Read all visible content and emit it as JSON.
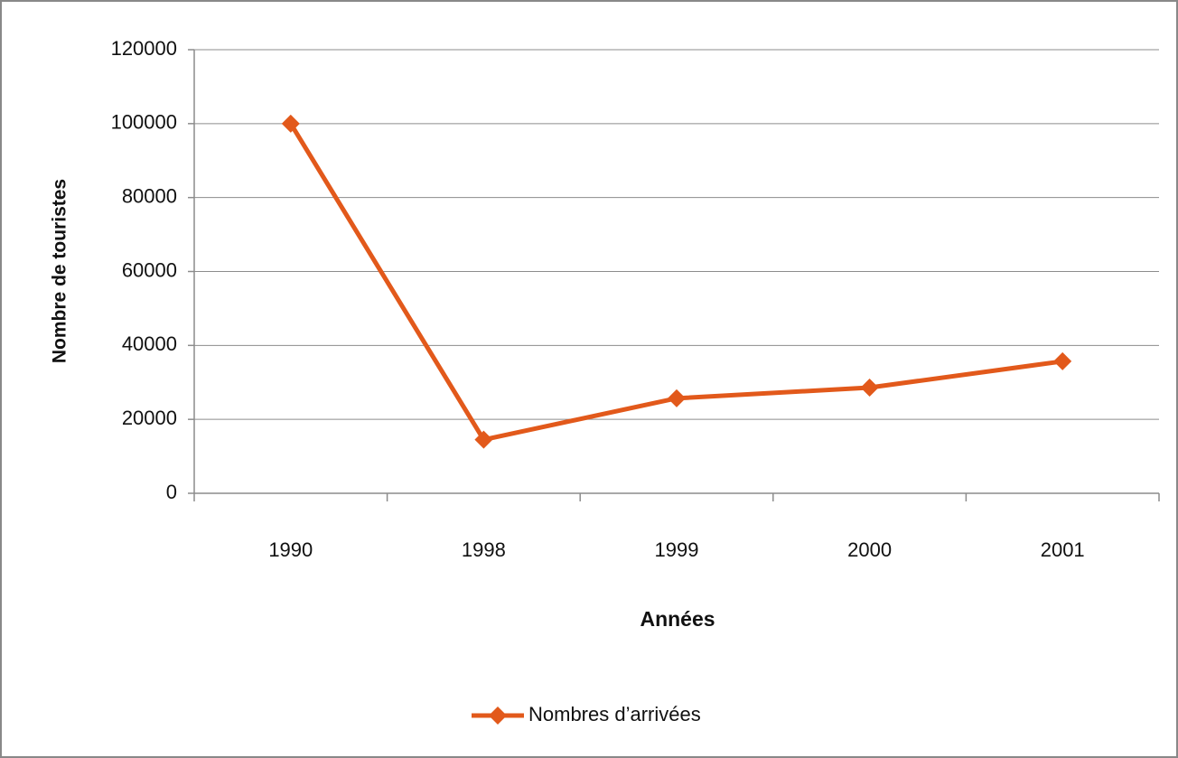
{
  "chart_data": {
    "type": "line",
    "x_label": "Années",
    "y_label": "Nombre de touristes",
    "categories": [
      "1990",
      "1998",
      "1999",
      "2000",
      "2001"
    ],
    "series": [
      {
        "name": "Nombres d’arrivées",
        "color": "#e2591b",
        "values": [
          100000,
          14500,
          25700,
          28600,
          35700
        ]
      }
    ],
    "ylim": [
      0,
      120000
    ],
    "yticks": [
      0,
      20000,
      40000,
      60000,
      80000,
      100000,
      120000
    ],
    "grid": true,
    "legend": "bottom"
  }
}
